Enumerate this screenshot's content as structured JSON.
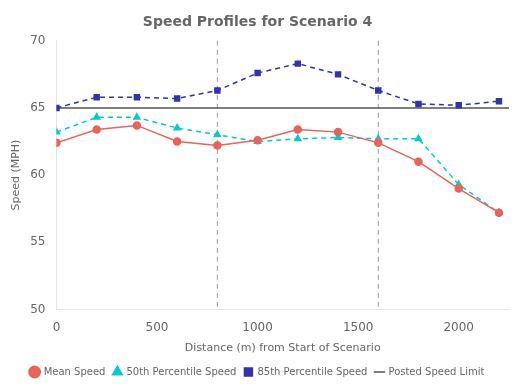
{
  "chart_data": {
    "type": "line",
    "title": "Speed Profiles for Scenario 4",
    "x_label": "Distance (m) from Start of Scenario",
    "y_label": "Speed (MPH)",
    "x": [
      0,
      200,
      400,
      600,
      800,
      1000,
      1200,
      1400,
      1600,
      1800,
      2000,
      2200
    ],
    "series": [
      {
        "name": "Mean Speed",
        "color": "#E8635A",
        "marker": "circle",
        "line_style": "solid",
        "values": [
          62.4,
          63.4,
          63.7,
          62.5,
          62.2,
          62.6,
          63.4,
          63.2,
          62.4,
          61.0,
          59.0,
          57.2
        ]
      },
      {
        "name": "50th Percentile Speed",
        "color": "#00CCCC",
        "marker": "triangle",
        "line_style": "dashed",
        "values": [
          63.2,
          64.3,
          64.3,
          63.5,
          63.0,
          62.5,
          62.7,
          62.8,
          62.7,
          62.7,
          59.3,
          57.2
        ]
      },
      {
        "name": "85th Percentile Speed",
        "color": "#3333AA",
        "marker": "square",
        "line_style": "dashed",
        "values": [
          65.0,
          65.8,
          65.8,
          65.7,
          66.3,
          67.6,
          68.3,
          67.5,
          66.3,
          65.3,
          65.2,
          65.5
        ]
      }
    ],
    "horizontal_lines": [
      {
        "name": "Posted Speed Limit",
        "value": 65,
        "color": "#555555",
        "line_style": "solid"
      }
    ],
    "vertical_lines": [
      {
        "value": 800,
        "color": "#999999",
        "line_style": "dashed"
      },
      {
        "value": 1600,
        "color": "#999999",
        "line_style": "dashed"
      }
    ],
    "xlim": [
      0,
      2250
    ],
    "ylim": [
      50,
      70
    ],
    "xticks": [
      0,
      500,
      1000,
      1500,
      2000
    ],
    "yticks": [
      50,
      55,
      60,
      65,
      70
    ],
    "grid": false,
    "legend": "bottom"
  }
}
